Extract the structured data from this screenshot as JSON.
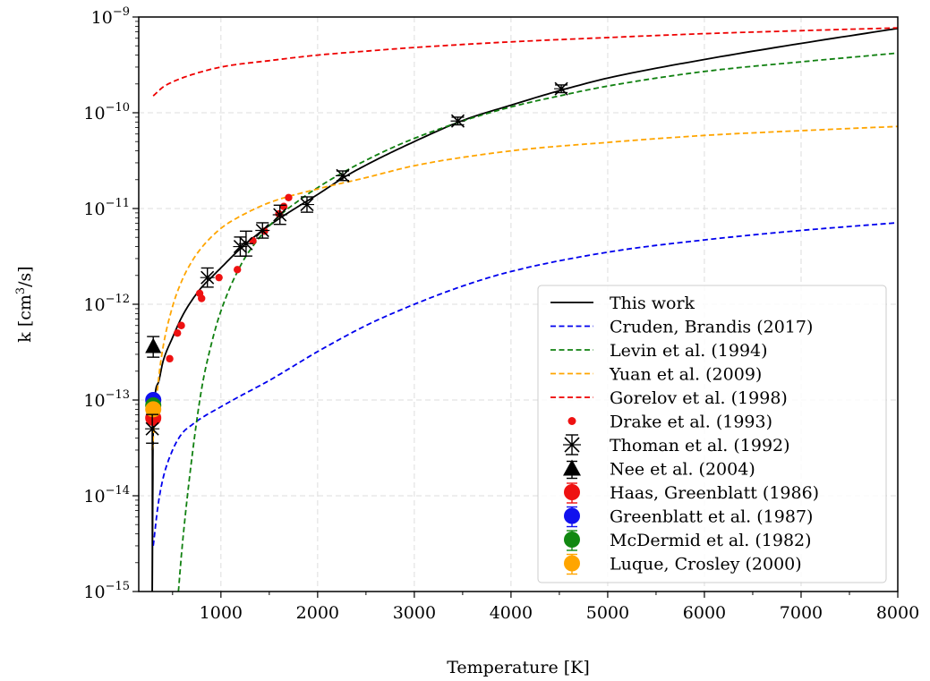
{
  "chart_data": {
    "type": "scatter",
    "xlabel": "Temperature [K]",
    "ylabel_parts": {
      "pre": "k [cm",
      "sup": "3",
      "post": "/s]"
    },
    "xlim": [
      150,
      8000
    ],
    "ylim": [
      1e-15,
      1e-09
    ],
    "yscale": "log",
    "grid": true,
    "legend_position": "lower-right",
    "xticks": [
      {
        "v": 1000,
        "label": "1000"
      },
      {
        "v": 2000,
        "label": "2000"
      },
      {
        "v": 3000,
        "label": "3000"
      },
      {
        "v": 4000,
        "label": "4000"
      },
      {
        "v": 5000,
        "label": "5000"
      },
      {
        "v": 6000,
        "label": "6000"
      },
      {
        "v": 7000,
        "label": "7000"
      },
      {
        "v": 8000,
        "label": "8000"
      }
    ],
    "yticks": [
      {
        "exp": -15,
        "base": "10",
        "sup": "−15"
      },
      {
        "exp": -14,
        "base": "10",
        "sup": "−14"
      },
      {
        "exp": -13,
        "base": "10",
        "sup": "−13"
      },
      {
        "exp": -12,
        "base": "10",
        "sup": "−12"
      },
      {
        "exp": -11,
        "base": "10",
        "sup": "−11"
      },
      {
        "exp": -10,
        "base": "10",
        "sup": "−10"
      },
      {
        "exp": -9,
        "base": "10",
        "sup": "−9"
      }
    ],
    "lines": [
      {
        "name": "This work",
        "color": "#000000",
        "dash": "solid",
        "x": [
          290,
          300,
          350,
          400,
          500,
          600,
          700,
          800,
          900,
          1000,
          1200,
          1400,
          1600,
          1800,
          2000,
          2300,
          2600,
          3000,
          3500,
          4000,
          4500,
          5000,
          6000,
          7000,
          8000
        ],
        "y": [
          1e-15,
          5e-14,
          1.5e-13,
          2.5e-13,
          4.5e-13,
          7.5e-13,
          1.1e-12,
          1.5e-12,
          1.9e-12,
          2.4e-12,
          3.8e-12,
          5.6e-12,
          7.8e-12,
          1.05e-11,
          1.4e-11,
          2.2e-11,
          3.2e-11,
          5e-11,
          8.3e-11,
          1.2e-10,
          1.7e-10,
          2.3e-10,
          3.6e-10,
          5.3e-10,
          7.6e-10
        ]
      },
      {
        "name": "Cruden, Brandis (2017)",
        "color": "#0000ee",
        "dash": "dashed",
        "x": [
          300,
          350,
          400,
          500,
          600,
          700,
          800,
          1000,
          1200,
          1500,
          2000,
          2500,
          3000,
          3500,
          4000,
          5000,
          6000,
          7000,
          8000
        ],
        "y": [
          3e-15,
          8e-15,
          1.5e-14,
          3e-14,
          4.5e-14,
          5.5e-14,
          6.5e-14,
          8.5e-14,
          1.1e-13,
          1.6e-13,
          3.2e-13,
          6e-13,
          1e-12,
          1.55e-12,
          2.2e-12,
          3.5e-12,
          4.7e-12,
          5.9e-12,
          7.1e-12
        ]
      },
      {
        "name": "Levin et al. (1994)",
        "color": "#108010",
        "dash": "dashed",
        "x": [
          560,
          600,
          700,
          800,
          900,
          1000,
          1200,
          1400,
          1600,
          1800,
          2000,
          2300,
          2700,
          3000,
          3500,
          4000,
          4500,
          5000,
          6000,
          7000,
          8000
        ],
        "y": [
          1e-15,
          3e-15,
          2.5e-14,
          1.3e-13,
          3.8e-13,
          8.5e-13,
          2.5e-12,
          5e-12,
          8.3e-12,
          1.2e-11,
          1.65e-11,
          2.5e-11,
          4e-11,
          5.4e-11,
          8.2e-11,
          1.15e-10,
          1.5e-10,
          1.9e-10,
          2.7e-10,
          3.4e-10,
          4.2e-10
        ]
      },
      {
        "name": "Yuan et al. (2009)",
        "color": "#ffa500",
        "dash": "dashed",
        "x": [
          290,
          300,
          350,
          400,
          500,
          600,
          700,
          800,
          1000,
          1200,
          1500,
          2000,
          2500,
          3000,
          4000,
          5000,
          6000,
          7000,
          8000
        ],
        "y": [
          3e-14,
          4e-14,
          1.5e-13,
          3.5e-13,
          9.5e-13,
          1.8e-12,
          2.8e-12,
          3.9e-12,
          6.2e-12,
          8.3e-12,
          1.15e-11,
          1.6e-11,
          2.1e-11,
          2.8e-11,
          4e-11,
          4.9e-11,
          5.8e-11,
          6.5e-11,
          7.2e-11
        ]
      },
      {
        "name": "Gorelov et al. (1998)",
        "color": "#ee0000",
        "dash": "dashed",
        "x": [
          300,
          400,
          500,
          700,
          1000,
          1500,
          2000,
          2500,
          3000,
          4000,
          5000,
          6000,
          7000,
          8000
        ],
        "y": [
          1.5e-10,
          1.85e-10,
          2.1e-10,
          2.5e-10,
          3e-10,
          3.5e-10,
          4e-10,
          4.4e-10,
          4.8e-10,
          5.5e-10,
          6.1e-10,
          6.7e-10,
          7.2e-10,
          7.7e-10
        ]
      }
    ],
    "points": {
      "drake": {
        "name": "Drake et al. (1993)",
        "color": "#ee1111",
        "x": [
          470,
          550,
          590,
          780,
          800,
          980,
          1170,
          1330,
          1450,
          1600,
          1650,
          1700
        ],
        "y": [
          2.7e-13,
          5e-13,
          6e-13,
          1.3e-12,
          1.15e-12,
          1.9e-12,
          2.3e-12,
          4.6e-12,
          5.8e-12,
          8.8e-12,
          1.05e-11,
          1.3e-11
        ]
      },
      "thoman": {
        "name": "Thoman et al. (1992)",
        "color": "#000000",
        "x": [
          290,
          860,
          1200,
          1260,
          1430,
          1610,
          1890,
          2260,
          3450,
          4520
        ],
        "y": [
          5e-14,
          1.9e-12,
          4e-12,
          4.3e-12,
          5.9e-12,
          8.6e-12,
          1.1e-11,
          2.2e-11,
          8.2e-11,
          1.78e-10
        ],
        "err": [
          0.15,
          0.1,
          0.1,
          0.13,
          0.08,
          0.1,
          0.08,
          0.05,
          0.04,
          0.04
        ]
      },
      "nee": {
        "name": "Nee et al. (2004)",
        "color": "#000000",
        "x": [
          300
        ],
        "y": [
          3.6e-13
        ],
        "err_lo": [
          2.8e-13
        ],
        "err_hi": [
          4.6e-13
        ]
      },
      "haas": {
        "name": "Haas, Greenblatt (1986)",
        "color": "#ee1111",
        "x": [
          300
        ],
        "y": [
          6.5e-14
        ]
      },
      "greenblatt": {
        "name": "Greenblatt et al. (1987)",
        "color": "#1111ee",
        "x": [
          300
        ],
        "y": [
          1e-13
        ]
      },
      "mcdermid": {
        "name": "McDermid et al. (1982)",
        "color": "#118811",
        "x": [
          300
        ],
        "y": [
          8.8e-14
        ]
      },
      "luque": {
        "name": "Luque, Crosley (2000)",
        "color": "#ffa500",
        "x": [
          300
        ],
        "y": [
          8e-14
        ]
      }
    },
    "legend": [
      {
        "key": "line",
        "label": "This work",
        "color": "#000000",
        "dash": "solid"
      },
      {
        "key": "line",
        "label": "Cruden, Brandis (2017)",
        "color": "#0000ee",
        "dash": "dashed"
      },
      {
        "key": "line",
        "label": "Levin et al. (1994)",
        "color": "#108010",
        "dash": "dashed"
      },
      {
        "key": "line",
        "label": "Yuan et al. (2009)",
        "color": "#ffa500",
        "dash": "dashed"
      },
      {
        "key": "line",
        "label": "Gorelov et al. (1998)",
        "color": "#ee0000",
        "dash": "dashed"
      },
      {
        "key": "dot",
        "label": "Drake et al. (1993)",
        "color": "#ee1111"
      },
      {
        "key": "xmark",
        "label": "Thoman et al. (1992)",
        "color": "#000000"
      },
      {
        "key": "triangle",
        "label": "Nee et al. (2004)",
        "color": "#000000"
      },
      {
        "key": "bigdot",
        "label": "Haas, Greenblatt (1986)",
        "color": "#ee1111"
      },
      {
        "key": "bigdot",
        "label": "Greenblatt et al. (1987)",
        "color": "#1111ee"
      },
      {
        "key": "bigdot",
        "label": "McDermid et al. (1982)",
        "color": "#118811"
      },
      {
        "key": "bigdot",
        "label": "Luque, Crosley (2000)",
        "color": "#ffa500"
      }
    ]
  }
}
